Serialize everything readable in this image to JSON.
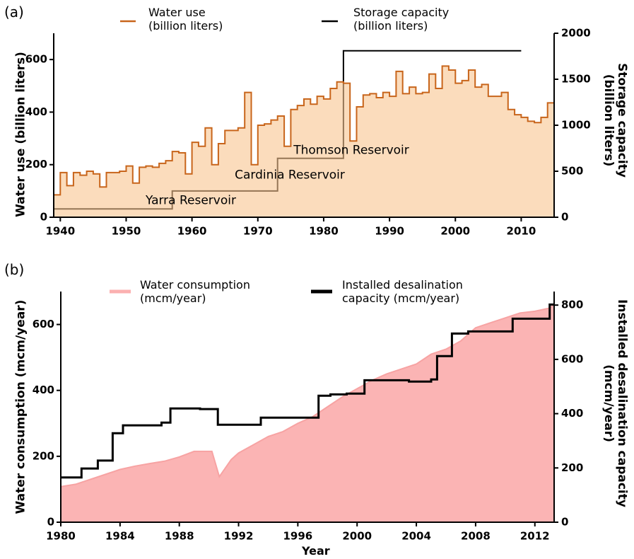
{
  "chart_data": [
    {
      "type": "line",
      "label": "(a)",
      "y_label": "Water use (billion liters)",
      "y2_label": "Storage capacity\n(billion liters)",
      "xlim": [
        1939,
        2015
      ],
      "xticks": [
        1940,
        1950,
        1960,
        1970,
        1980,
        1990,
        2000,
        2010
      ],
      "ylim": [
        0,
        700
      ],
      "yticks": [
        0,
        200,
        400,
        600
      ],
      "y2lim": [
        0,
        2000
      ],
      "y2ticks": [
        0,
        500,
        1000,
        1500,
        2000
      ],
      "annotations": [
        "Yarra Reservoir",
        "Cardinia Reservoir",
        "Thomson Reservoir"
      ],
      "series": [
        {
          "name": "Storage capacity\n(billion liters)",
          "color": "#000000",
          "axis": "y2",
          "step": true,
          "x": [
            1939,
            1957,
            1973,
            1983,
            2010
          ],
          "values": [
            90,
            285,
            640,
            1810,
            1810
          ]
        },
        {
          "name": "Water use\n(billion liters)",
          "color": "#c8651b",
          "fill": "#f9c48f",
          "step": true,
          "step_width": 1,
          "x": [
            1939,
            1940,
            1941,
            1942,
            1943,
            1944,
            1945,
            1946,
            1947,
            1948,
            1949,
            1950,
            1951,
            1952,
            1953,
            1954,
            1955,
            1956,
            1957,
            1958,
            1959,
            1960,
            1961,
            1962,
            1963,
            1964,
            1965,
            1966,
            1967,
            1968,
            1969,
            1970,
            1971,
            1972,
            1973,
            1974,
            1975,
            1976,
            1977,
            1978,
            1979,
            1980,
            1981,
            1982,
            1983,
            1984,
            1985,
            1986,
            1987,
            1988,
            1989,
            1990,
            1991,
            1992,
            1993,
            1994,
            1995,
            1996,
            1997,
            1998,
            1999,
            2000,
            2001,
            2002,
            2003,
            2004,
            2005,
            2006,
            2007,
            2008,
            2009,
            2010,
            2011,
            2012,
            2013,
            2014
          ],
          "values": [
            85,
            170,
            120,
            170,
            160,
            175,
            165,
            115,
            170,
            170,
            175,
            195,
            130,
            190,
            195,
            190,
            205,
            215,
            250,
            245,
            165,
            285,
            270,
            340,
            200,
            280,
            330,
            330,
            340,
            475,
            200,
            350,
            355,
            370,
            385,
            270,
            410,
            425,
            450,
            430,
            460,
            450,
            490,
            515,
            510,
            290,
            420,
            465,
            470,
            455,
            475,
            460,
            555,
            470,
            495,
            470,
            475,
            545,
            490,
            575,
            560,
            510,
            520,
            560,
            495,
            505,
            460,
            460,
            475,
            410,
            390,
            380,
            365,
            360,
            380,
            435
          ]
        }
      ]
    },
    {
      "type": "line",
      "label": "(b)",
      "x_label": "Year",
      "y_label": "Water consumption (mcm/year)",
      "y2_label": "Installed desalination capacity\n(mcm/year)",
      "xlim": [
        1980,
        2013.3
      ],
      "xticks": [
        1980,
        1984,
        1988,
        1992,
        1996,
        2000,
        2004,
        2008,
        2012
      ],
      "ylim": [
        0,
        700
      ],
      "yticks": [
        0,
        200,
        400,
        600
      ],
      "y2lim": [
        0,
        850
      ],
      "y2ticks": [
        0,
        200,
        400,
        600,
        800
      ],
      "series": [
        {
          "name": "Water consumption\n(mcm/year)",
          "color": "#f7a3a3",
          "fill": "#fbb0b0",
          "x": [
            1980,
            1981,
            1982,
            1983,
            1984,
            1985,
            1986,
            1987,
            1988,
            1989,
            1990.2,
            1990.7,
            1991.5,
            1992,
            1993,
            1994,
            1995,
            1996,
            1997,
            1998,
            1999,
            2000,
            2001,
            2002,
            2003,
            2004,
            2005,
            2006,
            2007,
            2008,
            2009,
            2010,
            2011,
            2012,
            2013,
            2013.3
          ],
          "values": [
            108,
            115,
            130,
            145,
            160,
            170,
            178,
            185,
            198,
            215,
            215,
            138,
            190,
            210,
            235,
            260,
            275,
            300,
            320,
            350,
            380,
            405,
            430,
            450,
            465,
            480,
            510,
            525,
            550,
            590,
            605,
            620,
            635,
            640,
            650,
            660
          ]
        },
        {
          "name": "Installed desalination\ncapacity (mcm/year)",
          "color": "#000000",
          "axis": "y2",
          "step": true,
          "x": [
            1980,
            1981.4,
            1982.5,
            1983.5,
            1984.2,
            1986.8,
            1987.4,
            1989.4,
            1990.6,
            1993.5,
            1997.4,
            1998.2,
            1999.3,
            2000.5,
            2003.5,
            2005,
            2005.4,
            2006.4,
            2007.5,
            2010.5,
            2013,
            2013.3
          ],
          "values": [
            165,
            198,
            227,
            328,
            357,
            367,
            419,
            417,
            359,
            385,
            466,
            471,
            474,
            523,
            518,
            526,
            612,
            695,
            703,
            750,
            802,
            802
          ]
        }
      ]
    }
  ]
}
